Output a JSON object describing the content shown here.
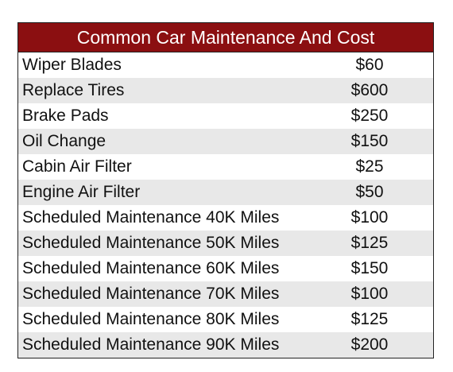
{
  "table": {
    "title": "Common Car Maintenance And Cost",
    "rows": [
      {
        "item": "Wiper Blades",
        "cost": "$60"
      },
      {
        "item": "Replace Tires",
        "cost": "$600"
      },
      {
        "item": "Brake Pads",
        "cost": "$250"
      },
      {
        "item": "Oil Change",
        "cost": "$150"
      },
      {
        "item": "Cabin Air Filter",
        "cost": "$25"
      },
      {
        "item": "Engine Air Filter",
        "cost": "$50"
      },
      {
        "item": "Scheduled Maintenance 40K Miles",
        "cost": "$100"
      },
      {
        "item": "Scheduled Maintenance 50K Miles",
        "cost": "$125"
      },
      {
        "item": "Scheduled Maintenance 60K Miles",
        "cost": "$150"
      },
      {
        "item": "Scheduled Maintenance 70K Miles",
        "cost": "$100"
      },
      {
        "item": "Scheduled Maintenance 80K Miles",
        "cost": "$125"
      },
      {
        "item": "Scheduled Maintenance 90K Miles",
        "cost": "$200"
      }
    ]
  },
  "colors": {
    "header_background": "#8b0f11",
    "header_text": "#ffffff",
    "stripe": "#e8e8e8"
  }
}
